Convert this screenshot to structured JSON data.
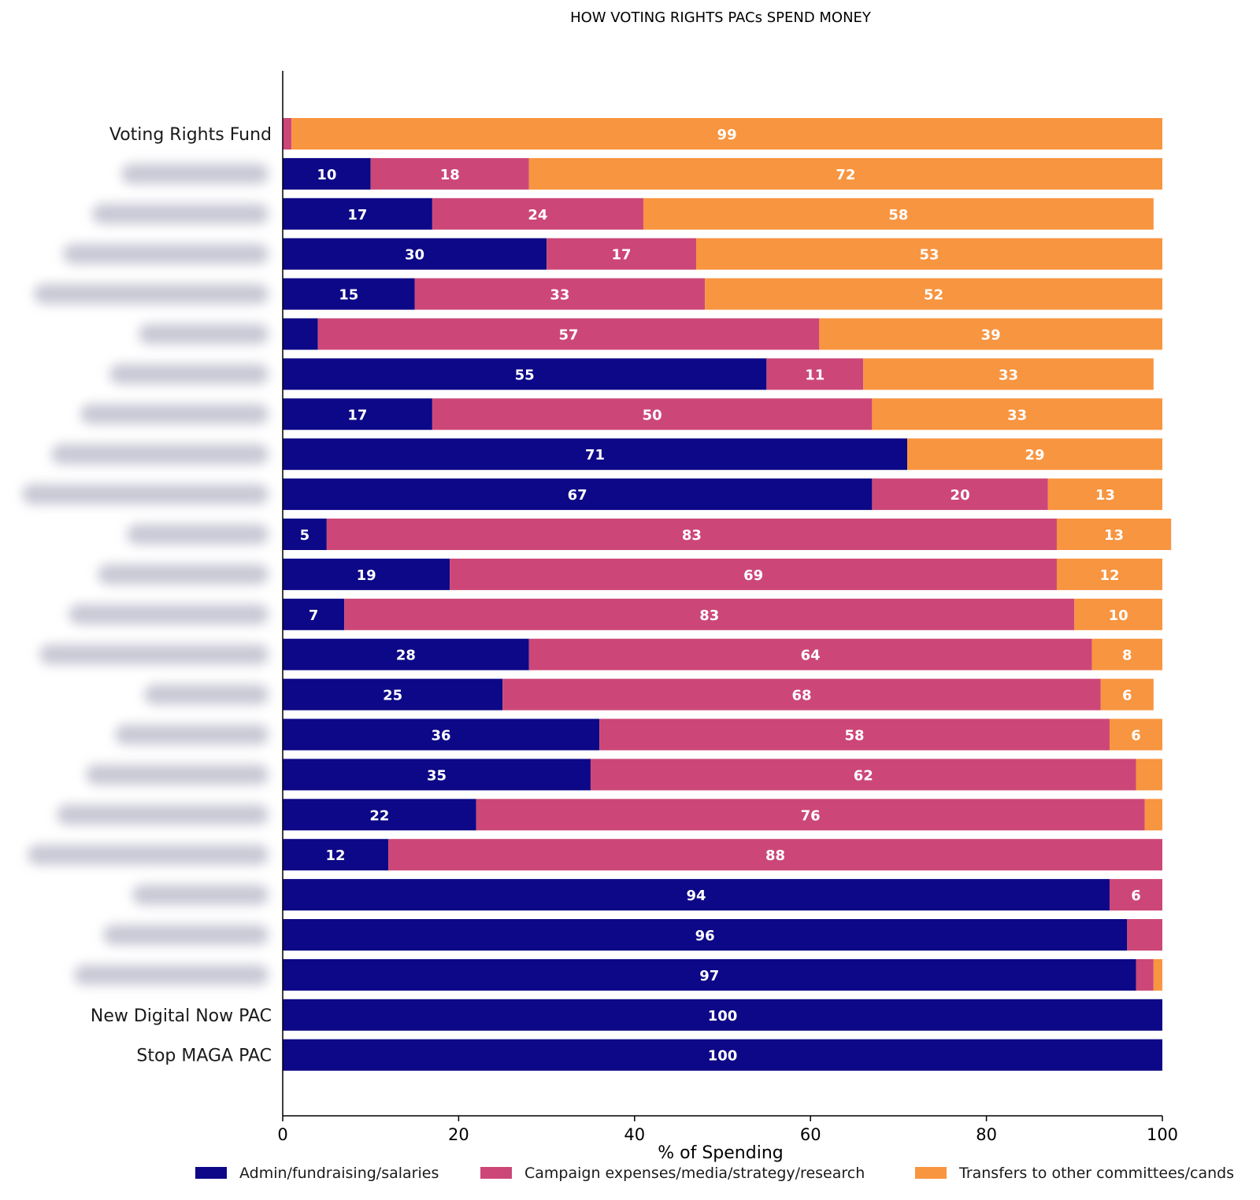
{
  "chart_data": {
    "type": "bar",
    "orientation": "horizontal",
    "stacked": true,
    "title": "HOW VOTING RIGHTS PACs SPEND MONEY",
    "xlabel": "% of Spending",
    "ylabel": "",
    "xlim": [
      0,
      100
    ],
    "x_ticks": [
      "0",
      "20",
      "40",
      "60",
      "80",
      "100"
    ],
    "grid": false,
    "legend_position": "bottom",
    "categories": [
      "Voting Rights Fund",
      "",
      "",
      "",
      "",
      "",
      "",
      "",
      "",
      "",
      "",
      "",
      "",
      "",
      "",
      "",
      "",
      "",
      "",
      "",
      "",
      "",
      "New Digital Now PAC",
      "Stop MAGA PAC"
    ],
    "category_label_hidden": [
      false,
      true,
      true,
      true,
      true,
      true,
      true,
      true,
      true,
      true,
      true,
      true,
      true,
      true,
      true,
      true,
      true,
      true,
      true,
      true,
      true,
      true,
      false,
      false
    ],
    "series": [
      {
        "name": "Admin/fundraising/salaries",
        "color": "#0d0887",
        "values": [
          0,
          10,
          17,
          30,
          15,
          4,
          55,
          17,
          71,
          67,
          5,
          19,
          7,
          28,
          25,
          36,
          35,
          22,
          12,
          94,
          96,
          97,
          100,
          100
        ]
      },
      {
        "name": "Campaign expenses/media/strategy/research",
        "color": "#cc4778",
        "values": [
          1,
          18,
          24,
          17,
          33,
          57,
          11,
          50,
          0,
          20,
          83,
          69,
          83,
          64,
          68,
          58,
          62,
          76,
          88,
          6,
          4,
          2,
          0,
          0
        ]
      },
      {
        "name": "Transfers to other committees/cands",
        "color": "#f89540",
        "values": [
          99,
          72,
          58,
          53,
          52,
          39,
          33,
          33,
          29,
          13,
          13,
          12,
          10,
          8,
          6,
          6,
          3,
          2,
          0,
          0,
          0,
          1,
          0,
          0
        ]
      }
    ],
    "label_min_value": 5,
    "label_color": "#ffffff"
  }
}
